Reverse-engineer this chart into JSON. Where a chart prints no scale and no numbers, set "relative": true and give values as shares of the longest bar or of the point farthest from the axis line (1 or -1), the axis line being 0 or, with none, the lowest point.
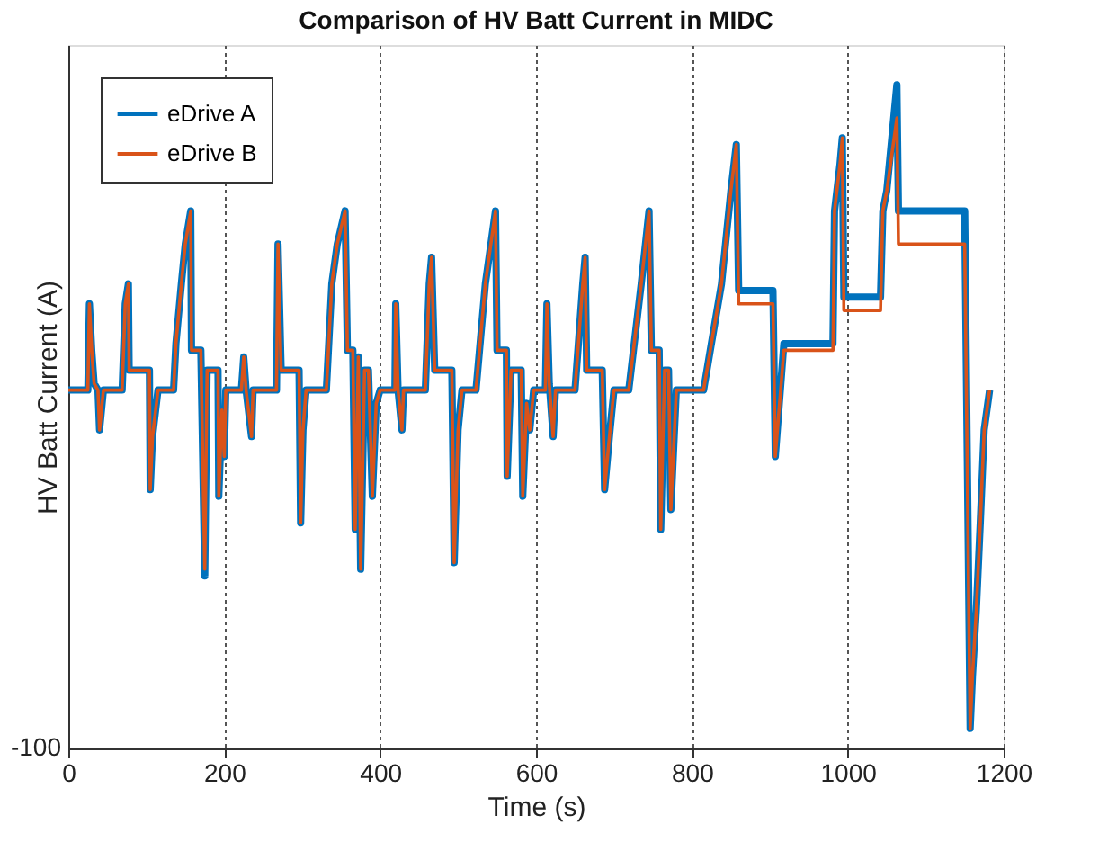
{
  "chart_data": {
    "type": "line",
    "title": "Comparison of HV Batt Current in MIDC",
    "xlabel": "Time (s)",
    "ylabel": "HV Batt Current (A)",
    "relative": true,
    "xlim": [
      0,
      1200
    ],
    "xticks": [
      0,
      200,
      400,
      600,
      800,
      1000,
      1200
    ],
    "grid": "x",
    "legend": "top left",
    "line_style": "solid",
    "marker": "none",
    "annotations": [
      "-100"
    ],
    "x": [
      0,
      25,
      27,
      30,
      33,
      38,
      40,
      45,
      69,
      73,
      77,
      78,
      104,
      105,
      108,
      115,
      135,
      138,
      145,
      150,
      157,
      158,
      170,
      175,
      178,
      192,
      193,
      197,
      200,
      202,
      222,
      225,
      228,
      235,
      237,
      267,
      269,
      273,
      296,
      298,
      301,
      305,
      331,
      338,
      345,
      355,
      358,
      365,
      368,
      372,
      375,
      380,
      385,
      390,
      395,
      400,
      419,
      420,
      423,
      428,
      430,
      458,
      463,
      466,
      470,
      492,
      495,
      500,
      505,
      523,
      535,
      548,
      550,
      562,
      563,
      568,
      581,
      583,
      588,
      592,
      597,
      612,
      614,
      617,
      622,
      625,
      650,
      660,
      663,
      665,
      685,
      688,
      695,
      700,
      719,
      735,
      745,
      748,
      758,
      760,
      765,
      770,
      773,
      780,
      815,
      825,
      838,
      850,
      857,
      860,
      904,
      907,
      918,
      981,
      983,
      990,
      993,
      995,
      1042,
      1045,
      1050,
      1063,
      1065,
      1150,
      1157,
      1160,
      1165,
      1170,
      1175,
      1182
    ],
    "series": [
      {
        "name": "eDrive A",
        "color": "#0072bd",
        "values": [
          0.54,
          0.54,
          0.67,
          0.6,
          0.55,
          0.54,
          0.48,
          0.54,
          0.54,
          0.67,
          0.7,
          0.57,
          0.57,
          0.39,
          0.47,
          0.54,
          0.54,
          0.61,
          0.7,
          0.76,
          0.81,
          0.6,
          0.6,
          0.26,
          0.57,
          0.57,
          0.38,
          0.51,
          0.44,
          0.54,
          0.54,
          0.59,
          0.54,
          0.47,
          0.54,
          0.54,
          0.76,
          0.57,
          0.57,
          0.34,
          0.48,
          0.54,
          0.54,
          0.7,
          0.76,
          0.81,
          0.6,
          0.6,
          0.33,
          0.59,
          0.27,
          0.57,
          0.57,
          0.38,
          0.52,
          0.54,
          0.54,
          0.67,
          0.54,
          0.48,
          0.54,
          0.54,
          0.7,
          0.74,
          0.57,
          0.57,
          0.28,
          0.48,
          0.54,
          0.54,
          0.7,
          0.81,
          0.6,
          0.6,
          0.41,
          0.57,
          0.57,
          0.38,
          0.52,
          0.48,
          0.54,
          0.54,
          0.67,
          0.55,
          0.47,
          0.54,
          0.54,
          0.7,
          0.74,
          0.57,
          0.57,
          0.39,
          0.48,
          0.54,
          0.54,
          0.7,
          0.81,
          0.6,
          0.6,
          0.33,
          0.57,
          0.57,
          0.36,
          0.54,
          0.54,
          0.61,
          0.7,
          0.84,
          0.91,
          0.69,
          0.69,
          0.44,
          0.61,
          0.61,
          0.81,
          0.88,
          0.92,
          0.68,
          0.68,
          0.81,
          0.84,
          1.0,
          0.81,
          0.81,
          0.03,
          0.11,
          0.21,
          0.34,
          0.48,
          0.54
        ]
      },
      {
        "name": "eDrive B",
        "color": "#d95319",
        "values": [
          0.54,
          0.54,
          0.67,
          0.6,
          0.55,
          0.54,
          0.48,
          0.54,
          0.54,
          0.67,
          0.7,
          0.57,
          0.57,
          0.39,
          0.47,
          0.54,
          0.54,
          0.61,
          0.7,
          0.76,
          0.81,
          0.6,
          0.6,
          0.27,
          0.57,
          0.57,
          0.38,
          0.51,
          0.44,
          0.54,
          0.54,
          0.59,
          0.54,
          0.47,
          0.54,
          0.54,
          0.76,
          0.57,
          0.57,
          0.34,
          0.48,
          0.54,
          0.54,
          0.7,
          0.76,
          0.81,
          0.6,
          0.6,
          0.33,
          0.59,
          0.27,
          0.57,
          0.57,
          0.38,
          0.52,
          0.54,
          0.54,
          0.67,
          0.54,
          0.48,
          0.54,
          0.54,
          0.7,
          0.74,
          0.57,
          0.57,
          0.28,
          0.48,
          0.54,
          0.54,
          0.7,
          0.81,
          0.6,
          0.6,
          0.41,
          0.57,
          0.57,
          0.38,
          0.52,
          0.48,
          0.54,
          0.54,
          0.67,
          0.55,
          0.47,
          0.54,
          0.54,
          0.7,
          0.74,
          0.57,
          0.57,
          0.39,
          0.48,
          0.54,
          0.54,
          0.7,
          0.81,
          0.6,
          0.6,
          0.33,
          0.57,
          0.57,
          0.36,
          0.54,
          0.54,
          0.61,
          0.7,
          0.84,
          0.91,
          0.67,
          0.67,
          0.44,
          0.6,
          0.6,
          0.81,
          0.88,
          0.92,
          0.66,
          0.66,
          0.81,
          0.84,
          0.95,
          0.76,
          0.76,
          0.03,
          0.11,
          0.21,
          0.34,
          0.48,
          0.54
        ]
      }
    ]
  }
}
